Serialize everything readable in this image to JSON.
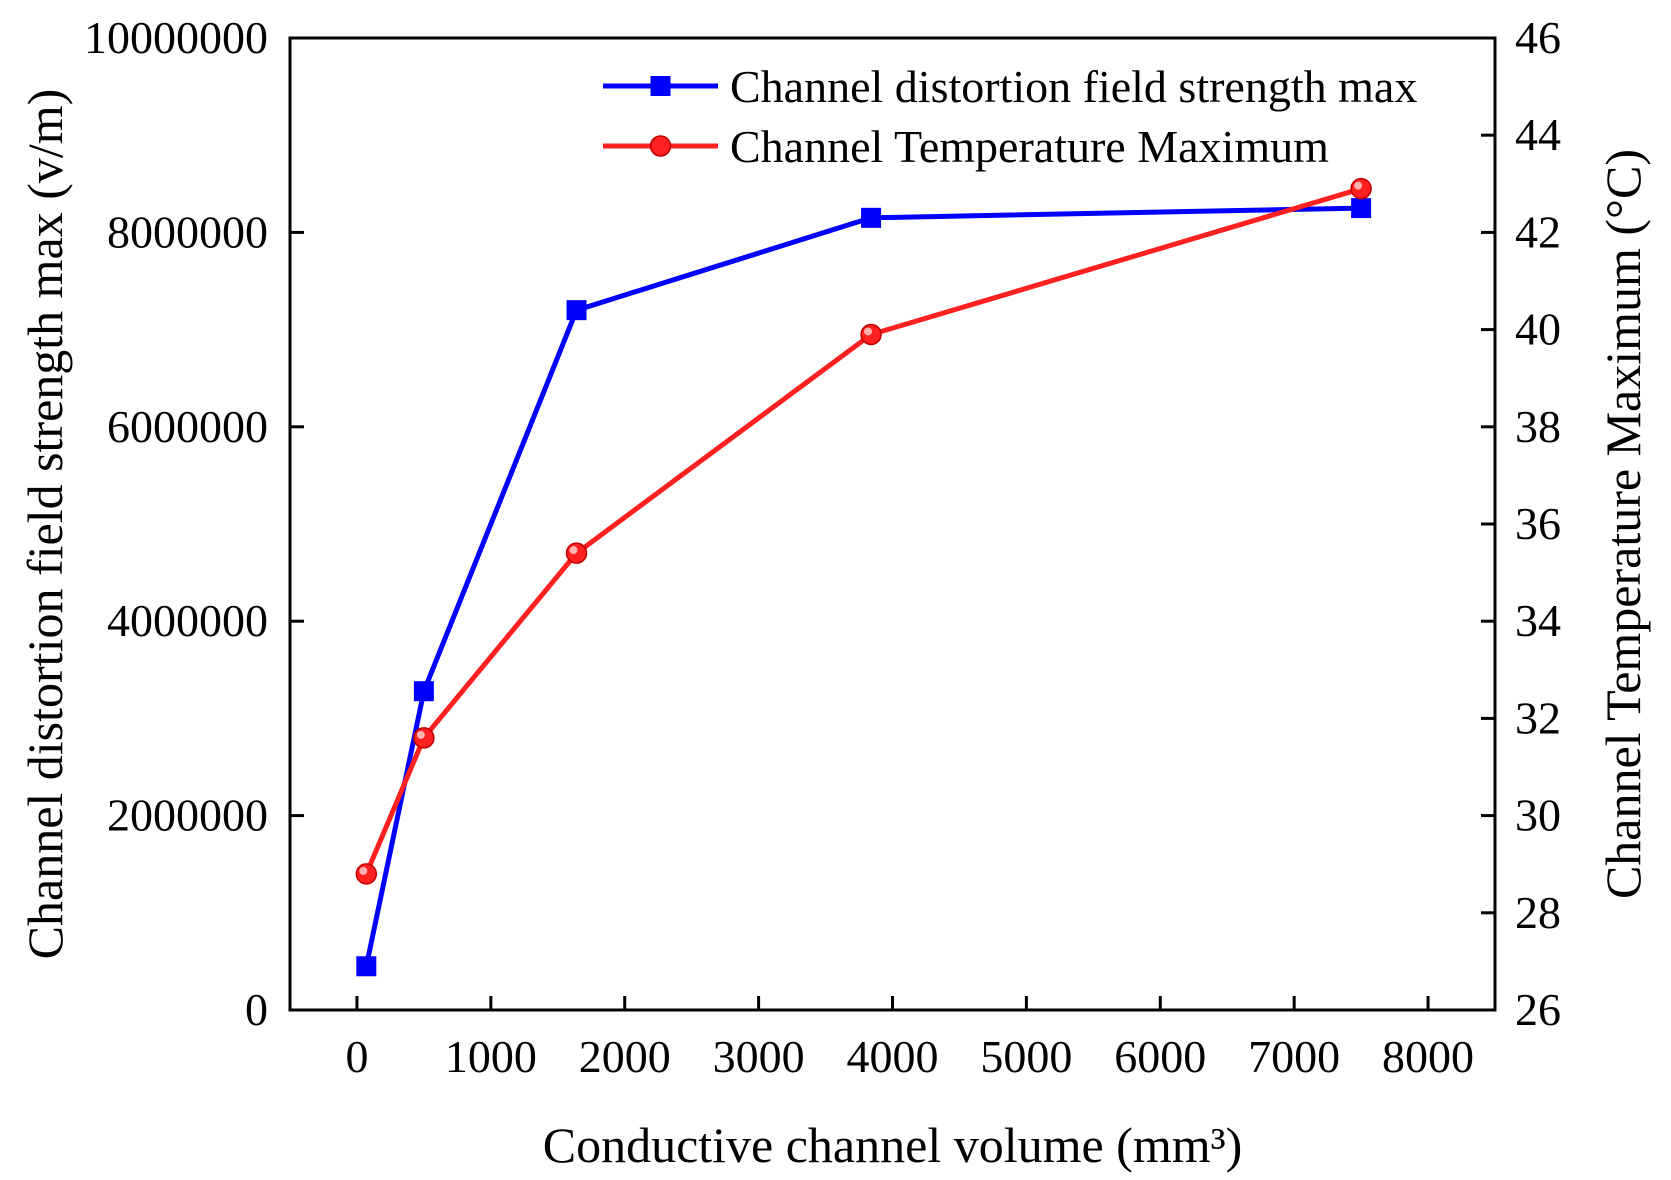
{
  "chart_data": {
    "type": "line",
    "title": "",
    "xlabel": "Conductive channel volume (mm³)",
    "ylabel_left": "Channel distortion field strength max (v/m)",
    "ylabel_right": "Channel Temperature Maximum (°C)",
    "xlim": [
      -500,
      8500
    ],
    "ylim_left": [
      0,
      10000000
    ],
    "ylim_right": [
      26,
      46
    ],
    "x_ticks": [
      "0",
      "1000",
      "2000",
      "3000",
      "4000",
      "5000",
      "6000",
      "7000",
      "8000"
    ],
    "x_tick_values": [
      0,
      1000,
      2000,
      3000,
      4000,
      5000,
      6000,
      7000,
      8000
    ],
    "y_left_ticks": [
      "0",
      "2000000",
      "4000000",
      "6000000",
      "8000000",
      "10000000"
    ],
    "y_left_tick_values": [
      0,
      2000000,
      4000000,
      6000000,
      8000000,
      10000000
    ],
    "y_right_ticks": [
      "26",
      "28",
      "30",
      "32",
      "34",
      "36",
      "38",
      "40",
      "42",
      "44",
      "46"
    ],
    "y_right_tick_values": [
      26,
      28,
      30,
      32,
      34,
      36,
      38,
      40,
      42,
      44,
      46
    ],
    "legend_position": "top-right",
    "series": [
      {
        "name": "Channel distortion field strength max",
        "axis": "left",
        "marker": "square",
        "color": "#0000ff",
        "x": [
          70,
          500,
          1640,
          3840,
          7500
        ],
        "values": [
          450000,
          3280000,
          7200000,
          8150000,
          8250000
        ]
      },
      {
        "name": "Channel Temperature Maximum",
        "axis": "right",
        "marker": "circle",
        "color": "#ff2020",
        "x": [
          70,
          500,
          1640,
          3840,
          7500
        ],
        "values": [
          28.8,
          31.6,
          35.4,
          39.9,
          42.9
        ]
      }
    ]
  }
}
